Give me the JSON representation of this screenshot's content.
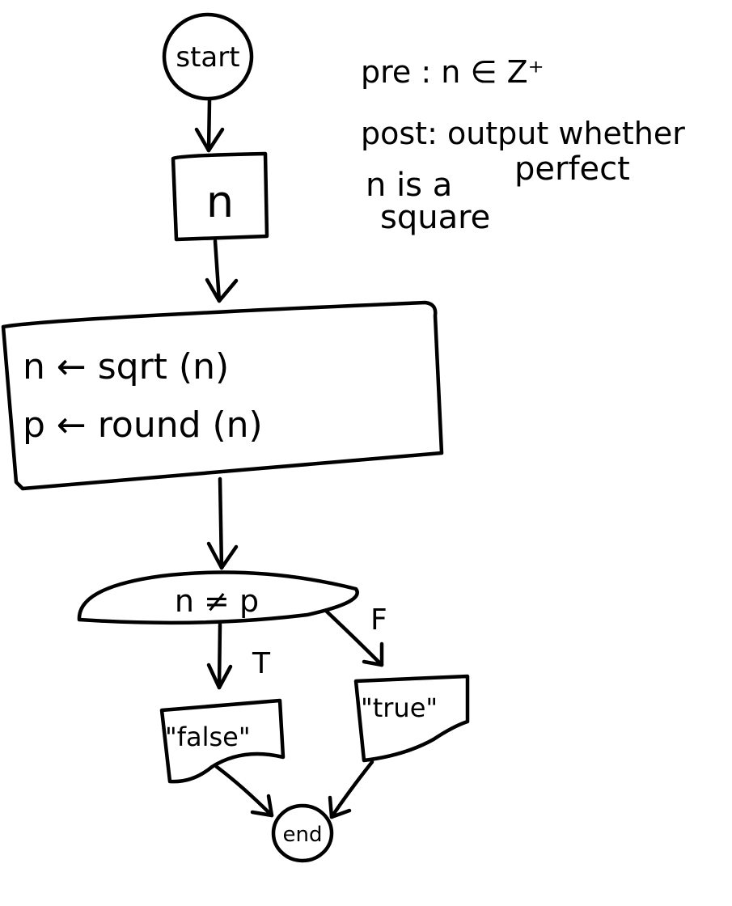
{
  "nodes": {
    "start": "start",
    "input": "n",
    "process_line1": "n ← sqrt (n)",
    "process_line2": "p ← round (n)",
    "decision": "n ≠ p",
    "output_false": "\"false\"",
    "output_true": "\"true\"",
    "end": "end"
  },
  "edges": {
    "true_label": "T",
    "false_label": "F"
  },
  "notes": {
    "pre": "pre : n ∈ Z⁺",
    "post_line1": "post: output whether",
    "post_line2a": "n is a",
    "post_line2b": "perfect",
    "post_line3": "square"
  }
}
